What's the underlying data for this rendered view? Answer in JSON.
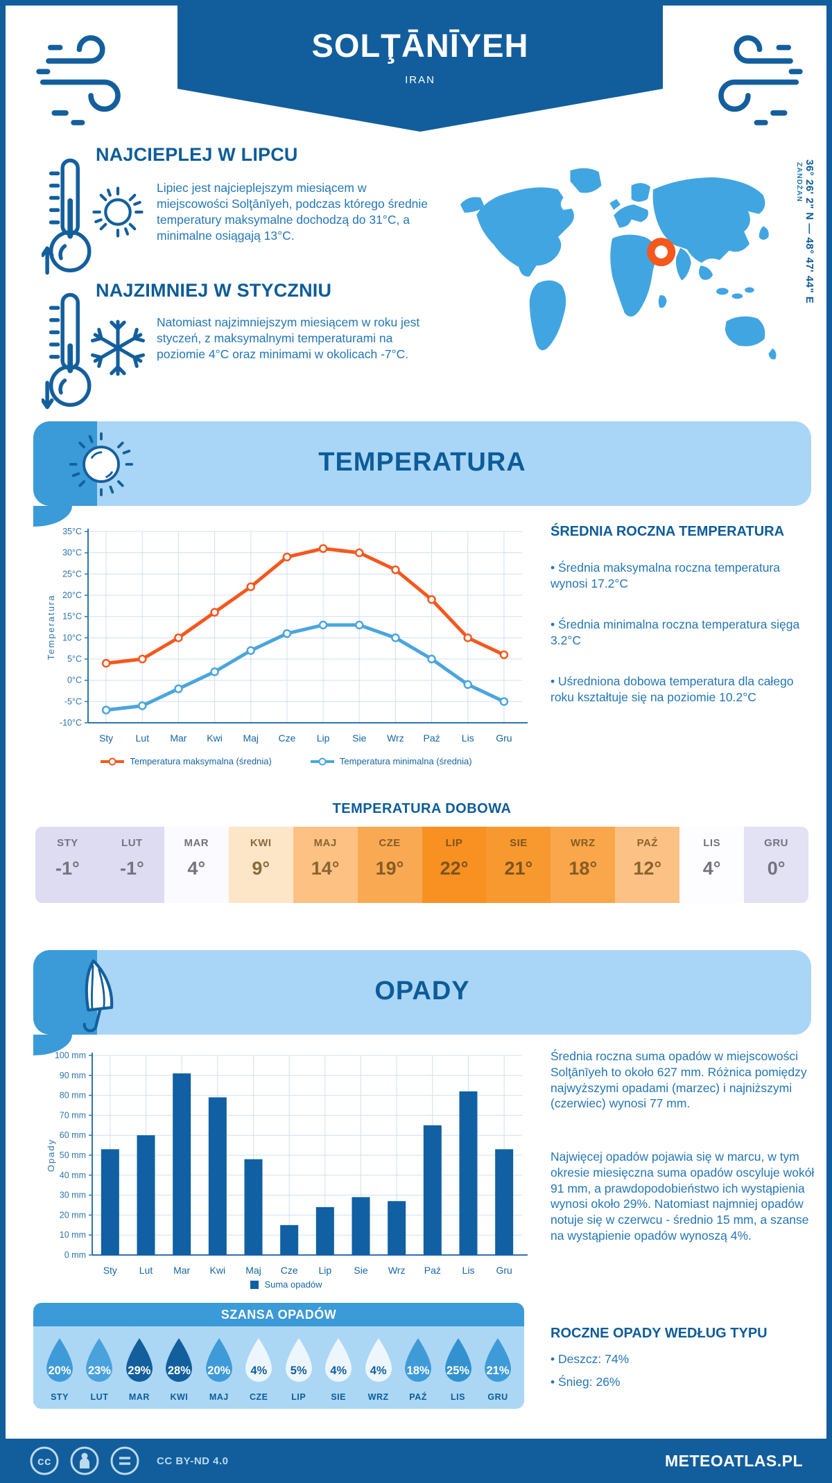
{
  "header": {
    "title": "SOLŢĀNĪYEH",
    "subtitle": "IRAN"
  },
  "coords": {
    "line": "36° 26' 2\" N — 48° 47' 44\" E",
    "region": "ZANDŻAN"
  },
  "warmest": {
    "heading": "NAJCIEPLEJ W LIPCU",
    "text": "Lipiec jest najcieplejszym miesiącem w miejscowości Solţānīyeh, podczas którego średnie temperatury maksymalne dochodzą do 31°C, a minimalne osiągają 13°C."
  },
  "coldest": {
    "heading": "NAJZIMNIEJ W STYCZNIU",
    "text": "Natomiast najzimniejszym miesiącem w roku jest styczeń, z maksymalnymi temperaturami na poziomie 4°C oraz minimami w okolicach -7°C."
  },
  "temperature_section": {
    "banner": "TEMPERATURA",
    "annual": {
      "heading": "ŚREDNIA ROCZNA TEMPERATURA",
      "bullets": [
        "• Średnia maksymalna roczna temperatura wynosi 17.2°C",
        "• Średnia minimalna roczna temperatura sięga 3.2°C",
        "• Uśredniona dobowa temperatura dla całego roku kształtuje się na poziomie 10.2°C"
      ]
    },
    "daily": {
      "title": "TEMPERATURA DOBOWA",
      "cells": [
        {
          "label": "STY",
          "value": "-1°",
          "bg": "#dedcf3",
          "tc": "#73737f"
        },
        {
          "label": "LUT",
          "value": "-1°",
          "bg": "#dedcf3",
          "tc": "#73737f"
        },
        {
          "label": "MAR",
          "value": "4°",
          "bg": "#fbfaff",
          "tc": "#73737f"
        },
        {
          "label": "KWI",
          "value": "9°",
          "bg": "#fde5c8",
          "tc": "#8a6a3a"
        },
        {
          "label": "MAJ",
          "value": "14°",
          "bg": "#fcc183",
          "tc": "#8a6430"
        },
        {
          "label": "CZE",
          "value": "19°",
          "bg": "#faa953",
          "tc": "#855c24"
        },
        {
          "label": "LIP",
          "value": "22°",
          "bg": "#f89022",
          "tc": "#7a541f"
        },
        {
          "label": "SIE",
          "value": "21°",
          "bg": "#f8992f",
          "tc": "#7a541f"
        },
        {
          "label": "WRZ",
          "value": "18°",
          "bg": "#faa64a",
          "tc": "#855c24"
        },
        {
          "label": "PAŹ",
          "value": "12°",
          "bg": "#fcc184",
          "tc": "#8a6430"
        },
        {
          "label": "LIS",
          "value": "4°",
          "bg": "#fdfdff",
          "tc": "#73737f"
        },
        {
          "label": "GRU",
          "value": "0°",
          "bg": "#e3e1f4",
          "tc": "#73737f"
        }
      ]
    }
  },
  "precip_section": {
    "banner": "OPADY",
    "paragraphs": [
      "Średnia roczna suma opadów w miejscowości Solţānīyeh to około 627 mm. Różnica pomiędzy najwyższymi opadami (marzec) i najniższymi (czerwiec) wynosi 77 mm.",
      "Najwięcej opadów pojawia się w marcu, w tym okresie miesięczna suma opadów oscyluje wokół 91 mm, a prawdopodobieństwo ich wystąpienia wynosi około 29%. Natomiast najmniej opadów notuje się w czerwcu - średnio 15 mm, a szanse na wystąpienie opadów wynoszą 4%."
    ],
    "types": {
      "heading": "ROCZNE OPADY WEDŁUG TYPU",
      "bullets": [
        "• Deszcz: 74%",
        "• Śnieg: 26%"
      ]
    },
    "chance": {
      "title": "SZANSA OPADÓW",
      "drops": [
        {
          "month": "STY",
          "value": "20%",
          "fill": "#3f9bd8",
          "color": "#ffffff"
        },
        {
          "month": "LUT",
          "value": "23%",
          "fill": "#4aa2dc",
          "color": "#ffffff"
        },
        {
          "month": "MAR",
          "value": "29%",
          "fill": "#135f9d",
          "color": "#ffffff"
        },
        {
          "month": "KWI",
          "value": "28%",
          "fill": "#135f9d",
          "color": "#ffffff"
        },
        {
          "month": "MAJ",
          "value": "20%",
          "fill": "#3f9bd8",
          "color": "#ffffff"
        },
        {
          "month": "CZE",
          "value": "4%",
          "fill": "#edf6fd",
          "color": "#11609f"
        },
        {
          "month": "LIP",
          "value": "5%",
          "fill": "#edf6fd",
          "color": "#11609f"
        },
        {
          "month": "SIE",
          "value": "4%",
          "fill": "#edf6fd",
          "color": "#11609f"
        },
        {
          "month": "WRZ",
          "value": "4%",
          "fill": "#edf6fd",
          "color": "#11609f"
        },
        {
          "month": "PAŹ",
          "value": "18%",
          "fill": "#3f9bd8",
          "color": "#ffffff"
        },
        {
          "month": "LIS",
          "value": "25%",
          "fill": "#3292cf",
          "color": "#ffffff"
        },
        {
          "month": "GRU",
          "value": "21%",
          "fill": "#3f9bd8",
          "color": "#ffffff"
        }
      ]
    }
  },
  "footer": {
    "license": "CC BY-ND 4.0",
    "site": "METEOATLAS.PL"
  },
  "colors": {
    "primary_dark": "#125e9c",
    "accent_medium": "#3b9ad8",
    "banner_light": "#a9d6f6",
    "map_blue": "#41a5e2",
    "marker_orange": "#f4581d",
    "body_text": "#2476b6",
    "grid": "#cfe0f2",
    "axis": "#2e74ad"
  },
  "chart_data": [
    {
      "type": "line",
      "categories": [
        "Sty",
        "Lut",
        "Mar",
        "Kwi",
        "Maj",
        "Cze",
        "Lip",
        "Sie",
        "Wrz",
        "Paź",
        "Lis",
        "Gru"
      ],
      "series": [
        {
          "name": "Temperatura maksymalna (średnia)",
          "color": "#f4581d",
          "values": [
            4,
            5,
            10,
            16,
            22,
            29,
            31,
            30,
            26,
            19,
            10,
            6
          ]
        },
        {
          "name": "Temperatura minimalna (średnia)",
          "color": "#4aa5de",
          "values": [
            -7,
            -6,
            -2,
            2,
            7,
            11,
            13,
            13,
            10,
            5,
            -1,
            -5
          ]
        }
      ],
      "title": "",
      "xlabel": "",
      "ylabel": "Temperatura",
      "ylim": [
        -10,
        35
      ],
      "ytick_step": 5,
      "ytick_suffix": "°C",
      "grid": true,
      "legend_position": "bottom"
    },
    {
      "type": "bar",
      "categories": [
        "Sty",
        "Lut",
        "Mar",
        "Kwi",
        "Maj",
        "Cze",
        "Lip",
        "Sie",
        "Wrz",
        "Paź",
        "Lis",
        "Gru"
      ],
      "series": [
        {
          "name": "Suma opadów",
          "color": "#1060a3",
          "values": [
            53,
            60,
            91,
            79,
            48,
            15,
            24,
            29,
            27,
            65,
            82,
            53
          ]
        }
      ],
      "title": "",
      "xlabel": "",
      "ylabel": "Opady",
      "ylim": [
        0,
        100
      ],
      "ytick_step": 10,
      "ytick_suffix": " mm",
      "grid": true,
      "legend_position": "bottom"
    }
  ]
}
